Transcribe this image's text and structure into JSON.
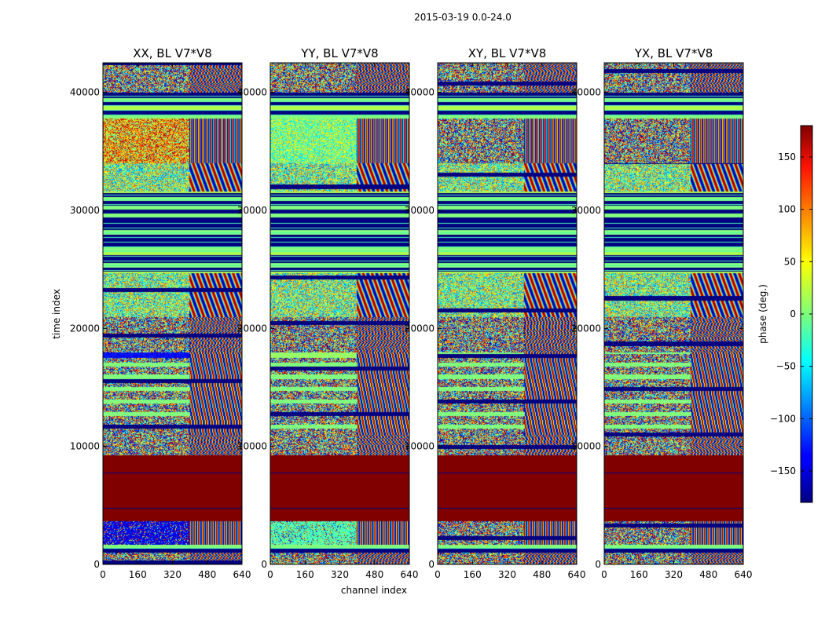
{
  "chart_data": {
    "type": "heatmap",
    "suptitle": "2015-03-19 0.0-24.0",
    "xlabel": "channel index",
    "ylabel": "time index",
    "xticks": [
      "0",
      "160",
      "320",
      "480",
      "640"
    ],
    "yticks": [
      "0",
      "10000",
      "20000",
      "30000",
      "40000"
    ],
    "xlim": [
      0,
      640
    ],
    "ylim": [
      0,
      42500
    ],
    "panels": [
      {
        "title": "XX, BL V7*V8"
      },
      {
        "title": "YY, BL V7*V8"
      },
      {
        "title": "XY, BL V7*V8"
      },
      {
        "title": "YX, BL V7*V8"
      }
    ],
    "colorbar": {
      "label": "phase (deg.)",
      "range": [
        -180,
        180
      ],
      "ticks": [
        "−150",
        "−100",
        "−50",
        "0",
        "50",
        "100",
        "150"
      ],
      "tick_values": [
        -150,
        -100,
        -50,
        0,
        50,
        100,
        150
      ],
      "colormap": "jet"
    },
    "bands": [
      {
        "from": 0,
        "to": 1000,
        "kind": "noise"
      },
      {
        "from": 1000,
        "to": 1700,
        "kind": "dark"
      },
      {
        "from": 1700,
        "to": 3700,
        "kind": "noise-blue"
      },
      {
        "from": 3700,
        "to": 9300,
        "kind": "saturated"
      },
      {
        "from": 9300,
        "to": 11000,
        "kind": "noise"
      },
      {
        "from": 11000,
        "to": 18000,
        "kind": "striped"
      },
      {
        "from": 18000,
        "to": 21000,
        "kind": "noise"
      },
      {
        "from": 21000,
        "to": 24700,
        "kind": "fringe"
      },
      {
        "from": 24700,
        "to": 29000,
        "kind": "dark"
      },
      {
        "from": 29000,
        "to": 30400,
        "kind": "flat"
      },
      {
        "from": 30400,
        "to": 31600,
        "kind": "dark"
      },
      {
        "from": 31600,
        "to": 34000,
        "kind": "fringe"
      },
      {
        "from": 34000,
        "to": 37800,
        "kind": "noise-dense"
      },
      {
        "from": 37800,
        "to": 40000,
        "kind": "dark"
      },
      {
        "from": 40000,
        "to": 42500,
        "kind": "noise"
      }
    ]
  }
}
